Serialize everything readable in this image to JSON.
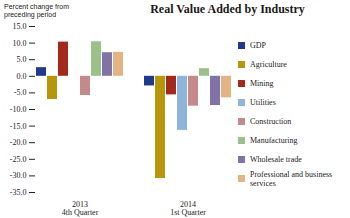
{
  "chart_data": {
    "type": "bar",
    "title": "Real Value Added by Industry",
    "ylabel": "Percent change from preceding period",
    "categories": [
      "2013\n4th Quarter",
      "2014\n1st Quarter"
    ],
    "series": [
      {
        "name": "GDP",
        "color": "#1f3a8a",
        "values": [
          2.6,
          -2.9
        ]
      },
      {
        "name": "Agriculture",
        "color": "#b8960c",
        "values": [
          -7.0,
          -30.8
        ]
      },
      {
        "name": "Mining",
        "color": "#a3291d",
        "values": [
          10.3,
          -5.6
        ]
      },
      {
        "name": "Utilities",
        "color": "#8fb4d9",
        "values": [
          0.0,
          -16.3
        ]
      },
      {
        "name": "Construction",
        "color": "#c48a8a",
        "values": [
          -5.8,
          -9.0
        ]
      },
      {
        "name": "Manufacturing",
        "color": "#9cc08a",
        "values": [
          10.4,
          2.3
        ]
      },
      {
        "name": "Wholesale trade",
        "color": "#8172a8",
        "values": [
          7.1,
          -8.8
        ]
      },
      {
        "name": "Professional and business services",
        "color": "#e3b383",
        "values": [
          7.2,
          -6.5
        ]
      }
    ],
    "ylim": [
      -35,
      15
    ],
    "yticks": [
      {
        "value": 15,
        "label": "15.0"
      },
      {
        "value": 10,
        "label": "10.0"
      },
      {
        "value": 5,
        "label": "5.0"
      },
      {
        "value": 0,
        "label": "0.0"
      },
      {
        "value": -5,
        "label": "-5.0"
      },
      {
        "value": -10,
        "label": "-10.0"
      },
      {
        "value": -15,
        "label": "-15.0"
      },
      {
        "value": -20,
        "label": "-20.0"
      },
      {
        "value": -25,
        "label": "-25.0"
      },
      {
        "value": -30,
        "label": "-30.0"
      },
      {
        "value": -35,
        "label": "-35.0"
      }
    ],
    "grid": false,
    "legend": "right"
  }
}
